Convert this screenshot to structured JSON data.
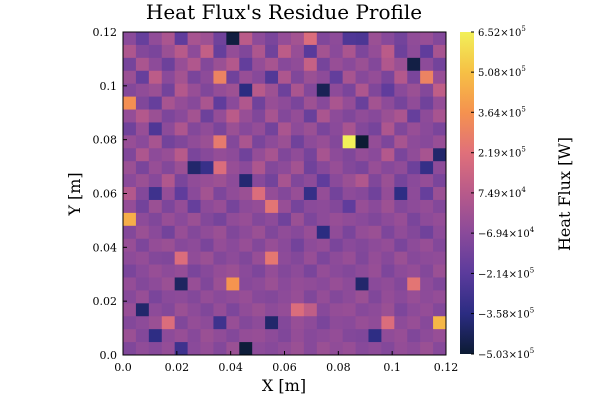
{
  "chart_data": {
    "type": "heatmap",
    "title": "Heat Flux's Residue Profile",
    "xlabel": "X [m]",
    "ylabel": "Y [m]",
    "xlim": [
      0.0,
      0.12
    ],
    "ylim": [
      0.0,
      0.12
    ],
    "x_ticks": [
      0.0,
      0.02,
      0.04,
      0.06,
      0.08,
      0.1,
      0.12
    ],
    "y_ticks": [
      0.0,
      0.02,
      0.04,
      0.06,
      0.08,
      0.1,
      0.12
    ],
    "x_tick_labels": [
      "0.0",
      "0.02",
      "0.04",
      "0.06",
      "0.08",
      "0.1",
      "0.12"
    ],
    "y_tick_labels": [
      "0.0",
      "0.02",
      "0.04",
      "0.06",
      "0.08",
      "0.1",
      "0.12"
    ],
    "grid": false,
    "colorbar": {
      "label": "Heat Flux [W]",
      "min": -503000,
      "max": 652000,
      "tick_labels": [
        {
          "mantissa": "6.52",
          "sign": "",
          "exp": "5",
          "value": 652000
        },
        {
          "mantissa": "5.08",
          "sign": "",
          "exp": "5",
          "value": 508000
        },
        {
          "mantissa": "3.64",
          "sign": "",
          "exp": "5",
          "value": 364000
        },
        {
          "mantissa": "2.19",
          "sign": "",
          "exp": "5",
          "value": 219000
        },
        {
          "mantissa": "7.49",
          "sign": "",
          "exp": "4",
          "value": 74900
        },
        {
          "mantissa": "6.94",
          "sign": "−",
          "exp": "4",
          "value": -69400
        },
        {
          "mantissa": "2.14",
          "sign": "−",
          "exp": "5",
          "value": -214000
        },
        {
          "mantissa": "3.58",
          "sign": "−",
          "exp": "5",
          "value": -358000
        },
        {
          "mantissa": "5.03",
          "sign": "−",
          "exp": "5",
          "value": -503000
        }
      ],
      "colormap": [
        "#0c1b33",
        "#2b2c82",
        "#5b3b9c",
        "#8a4a9a",
        "#b85a8a",
        "#e0707a",
        "#f5924f",
        "#f6c045",
        "#f2f059"
      ]
    },
    "grid_size": [
      25,
      25
    ],
    "cell_size_m": 0.0048,
    "row_order": "top-to-bottom",
    "values": [
      [
        -70000,
        -180000,
        -50000,
        30000,
        -200000,
        20000,
        -10000,
        -150000,
        -480000,
        80000,
        -60000,
        -120000,
        -40000,
        10000,
        200000,
        -100000,
        -60000,
        -250000,
        -260000,
        -20000,
        -80000,
        -140000,
        -50000,
        -30000,
        -90000
      ],
      [
        40000,
        -90000,
        -120000,
        -20000,
        70000,
        -60000,
        110000,
        -180000,
        -40000,
        -100000,
        40000,
        -150000,
        90000,
        -30000,
        -220000,
        10000,
        -70000,
        30000,
        -110000,
        -40000,
        80000,
        -160000,
        -60000,
        -200000,
        20000
      ],
      [
        -130000,
        30000,
        -60000,
        -160000,
        -30000,
        50000,
        -90000,
        -20000,
        60000,
        -190000,
        -40000,
        20000,
        -80000,
        -50000,
        120000,
        -130000,
        -30000,
        -70000,
        -20000,
        -90000,
        50000,
        -20000,
        -470000,
        -60000,
        -140000
      ],
      [
        -20000,
        -180000,
        90000,
        -70000,
        10000,
        -120000,
        -60000,
        300000,
        -150000,
        -30000,
        -80000,
        -240000,
        40000,
        -100000,
        -20000,
        -60000,
        -190000,
        20000,
        -80000,
        -40000,
        -120000,
        60000,
        -120000,
        300000,
        -30000
      ],
      [
        -90000,
        -50000,
        -20000,
        -140000,
        60000,
        -30000,
        -100000,
        -40000,
        -10000,
        -360000,
        70000,
        -10000,
        -160000,
        30000,
        -90000,
        -440000,
        -60000,
        -120000,
        40000,
        -100000,
        -200000,
        -70000,
        -20000,
        -90000,
        100000
      ],
      [
        350000,
        -100000,
        -180000,
        20000,
        -40000,
        -80000,
        30000,
        -200000,
        -70000,
        50000,
        -150000,
        -30000,
        -60000,
        -120000,
        -10000,
        -80000,
        30000,
        -40000,
        -170000,
        10000,
        -60000,
        -130000,
        -50000,
        -150000,
        -40000
      ],
      [
        -40000,
        60000,
        -20000,
        -110000,
        -70000,
        10000,
        -160000,
        -40000,
        80000,
        -30000,
        -100000,
        20000,
        -90000,
        -40000,
        -170000,
        30000,
        -60000,
        -100000,
        -50000,
        -80000,
        -20000,
        30000,
        -180000,
        -60000,
        20000
      ],
      [
        -150000,
        -30000,
        -250000,
        -60000,
        40000,
        -90000,
        -50000,
        -120000,
        -20000,
        -80000,
        -40000,
        -140000,
        30000,
        -60000,
        -20000,
        -120000,
        -70000,
        20000,
        -90000,
        -130000,
        40000,
        -100000,
        -30000,
        -70000,
        -120000
      ],
      [
        -30000,
        -70000,
        20000,
        -140000,
        -100000,
        -50000,
        -20000,
        260000,
        -90000,
        30000,
        -120000,
        -60000,
        -20000,
        -150000,
        -60000,
        -30000,
        -90000,
        652000,
        -503000,
        -40000,
        -110000,
        20000,
        -60000,
        -80000,
        -30000
      ],
      [
        -100000,
        40000,
        -60000,
        -30000,
        70000,
        -120000,
        -80000,
        -40000,
        -60000,
        -150000,
        -40000,
        20000,
        -100000,
        -50000,
        -130000,
        20000,
        -60000,
        -100000,
        -40000,
        -70000,
        60000,
        -120000,
        -50000,
        20000,
        -400000
      ],
      [
        -20000,
        -120000,
        -30000,
        -90000,
        -20000,
        -400000,
        -320000,
        200000,
        -30000,
        -70000,
        40000,
        -90000,
        -60000,
        10000,
        -150000,
        -80000,
        -30000,
        -90000,
        -120000,
        -30000,
        -80000,
        -50000,
        -160000,
        -330000,
        -60000
      ],
      [
        -70000,
        -20000,
        -80000,
        50000,
        -120000,
        -50000,
        -30000,
        -10000,
        -60000,
        -390000,
        -80000,
        -140000,
        20000,
        -100000,
        -60000,
        -200000,
        -70000,
        -20000,
        50000,
        -100000,
        -20000,
        -130000,
        -70000,
        -40000,
        -120000
      ],
      [
        60000,
        -90000,
        -300000,
        -40000,
        -200000,
        -70000,
        10000,
        -110000,
        -50000,
        -20000,
        200000,
        -40000,
        -90000,
        -30000,
        -330000,
        -40000,
        -140000,
        -60000,
        -80000,
        -150000,
        -40000,
        -350000,
        -60000,
        -180000,
        -20000
      ],
      [
        -40000,
        -140000,
        -20000,
        -110000,
        -40000,
        -180000,
        -60000,
        -30000,
        -130000,
        -60000,
        -40000,
        240000,
        -30000,
        -130000,
        -70000,
        -60000,
        -90000,
        -200000,
        -30000,
        -70000,
        -10000,
        -90000,
        -60000,
        -40000,
        -90000
      ],
      [
        450000,
        -60000,
        -100000,
        -30000,
        -70000,
        -20000,
        -90000,
        -130000,
        -50000,
        -30000,
        -90000,
        -60000,
        -150000,
        -20000,
        -110000,
        -60000,
        -30000,
        -50000,
        -70000,
        -100000,
        -60000,
        -30000,
        -120000,
        -60000,
        -40000
      ],
      [
        -90000,
        -20000,
        -70000,
        -140000,
        -30000,
        -90000,
        -50000,
        -20000,
        -100000,
        -60000,
        -20000,
        -100000,
        -50000,
        -80000,
        -30000,
        -360000,
        -50000,
        -120000,
        -40000,
        -20000,
        -110000,
        -50000,
        -90000,
        -150000,
        -60000
      ],
      [
        -30000,
        -110000,
        -40000,
        -20000,
        -80000,
        -60000,
        -120000,
        -40000,
        -70000,
        -30000,
        -90000,
        -30000,
        -70000,
        -140000,
        -60000,
        -40000,
        -120000,
        -70000,
        -90000,
        -60000,
        -40000,
        -120000,
        -60000,
        -30000,
        -90000
      ],
      [
        -60000,
        -40000,
        -90000,
        -100000,
        200000,
        -50000,
        -20000,
        -90000,
        -60000,
        -100000,
        -30000,
        250000,
        -60000,
        -90000,
        -30000,
        -110000,
        -60000,
        -30000,
        -100000,
        -40000,
        -80000,
        -20000,
        -80000,
        -60000,
        -50000
      ],
      [
        -120000,
        -70000,
        -30000,
        -60000,
        -40000,
        -120000,
        -80000,
        -40000,
        -20000,
        -70000,
        -110000,
        -40000,
        -90000,
        -60000,
        -120000,
        -40000,
        -70000,
        -90000,
        -60000,
        -30000,
        -110000,
        -60000,
        -40000,
        -90000,
        -20000
      ],
      [
        -40000,
        -90000,
        -60000,
        -20000,
        -420000,
        -30000,
        -100000,
        -20000,
        370000,
        -80000,
        -60000,
        -20000,
        -70000,
        -40000,
        -50000,
        -70000,
        -30000,
        -60000,
        -400000,
        -70000,
        -50000,
        -90000,
        240000,
        -60000,
        -100000
      ],
      [
        -80000,
        -30000,
        -120000,
        -70000,
        -60000,
        -90000,
        -40000,
        -70000,
        -50000,
        -30000,
        -80000,
        -90000,
        -60000,
        -30000,
        -100000,
        -40000,
        -90000,
        -60000,
        -20000,
        -100000,
        -40000,
        -70000,
        -30000,
        -60000,
        -40000
      ],
      [
        -30000,
        -400000,
        -60000,
        -90000,
        -20000,
        -60000,
        -100000,
        -40000,
        -110000,
        -50000,
        -20000,
        -60000,
        -40000,
        200000,
        100000,
        -80000,
        -40000,
        -30000,
        -80000,
        -60000,
        -20000,
        -110000,
        -60000,
        -40000,
        -90000
      ],
      [
        -90000,
        -60000,
        -20000,
        200000,
        -100000,
        -40000,
        -60000,
        -300000,
        -30000,
        -90000,
        -60000,
        -400000,
        -90000,
        -30000,
        -60000,
        -120000,
        -60000,
        -70000,
        -30000,
        -50000,
        200000,
        -60000,
        -30000,
        -80000,
        480000
      ],
      [
        -20000,
        -90000,
        -350000,
        -60000,
        -30000,
        -80000,
        -20000,
        -50000,
        -90000,
        -40000,
        -30000,
        -60000,
        -100000,
        -40000,
        -80000,
        -60000,
        -40000,
        -90000,
        -100000,
        -350000,
        -50000,
        -30000,
        -100000,
        -60000,
        -30000
      ],
      [
        -100000,
        -50000,
        -80000,
        -40000,
        -300000,
        -70000,
        -40000,
        -90000,
        -20000,
        -490000,
        -60000,
        -80000,
        -50000,
        -20000,
        -80000,
        -20000,
        -50000,
        -30000,
        -80000,
        -60000,
        -90000,
        -40000,
        -60000,
        -20000,
        -80000
      ]
    ]
  }
}
